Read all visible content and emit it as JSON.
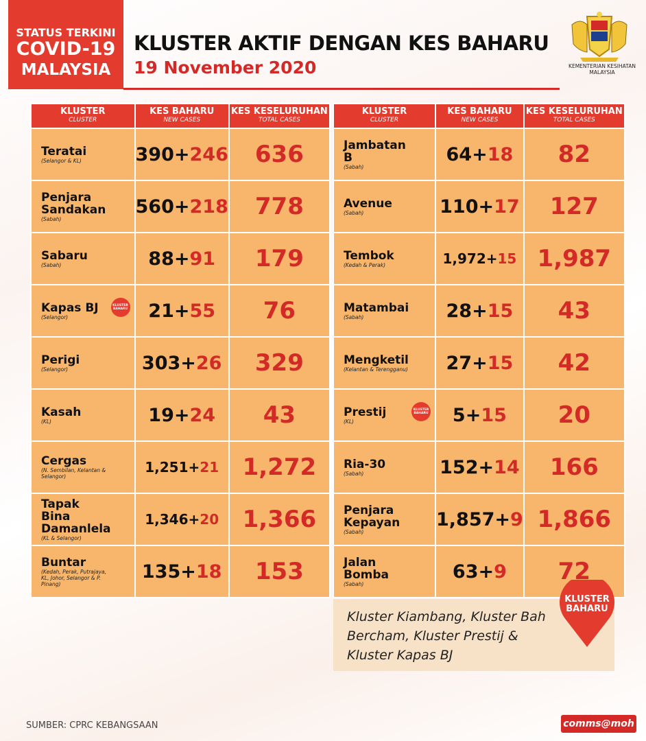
{
  "header": {
    "badge": [
      "STATUS TERKINI",
      "COVID-19",
      "MALAYSIA"
    ],
    "title": "KLUSTER AKTIF DENGAN KES BAHARU",
    "date": "19 November 2020",
    "ministry": [
      "KEMENTERIAN KESIHATAN",
      "MALAYSIA"
    ]
  },
  "tables": [
    {
      "columns": [
        {
          "label": "KLUSTER",
          "sublabel": "CLUSTER"
        },
        {
          "label": "KES BAHARU",
          "sublabel": "NEW CASES"
        },
        {
          "label": "KES KESELURUHAN",
          "sublabel": "TOTAL CASES"
        }
      ],
      "rows": [
        {
          "cluster": "Teratai",
          "location": "(Selangor & KL)",
          "new_cases": {
            "base": "390+",
            "added": "246"
          },
          "total": "636"
        },
        {
          "cluster": "Penjara Sandakan",
          "location": "(Sabah)",
          "new_cases": {
            "base": "560+",
            "added": "218"
          },
          "total": "778"
        },
        {
          "cluster": "Sabaru",
          "location": "(Sabah)",
          "new_cases": {
            "base": "88+",
            "added": "91"
          },
          "total": "179"
        },
        {
          "cluster": "Kapas BJ",
          "location": "(Selangor)",
          "new_cases": {
            "base": "21+",
            "added": "55"
          },
          "total": "76",
          "new_cluster": true
        },
        {
          "cluster": "Perigi",
          "location": "(Selangor)",
          "new_cases": {
            "base": "303+",
            "added": "26"
          },
          "total": "329"
        },
        {
          "cluster": "Kasah",
          "location": "(KL)",
          "new_cases": {
            "base": "19+",
            "added": "24"
          },
          "total": "43"
        },
        {
          "cluster": "Cergas",
          "location": "(N. Sembilan, Kelantan & Selangor)",
          "new_cases": {
            "base": "1,251+",
            "added": "21"
          },
          "total": "1,272"
        },
        {
          "cluster": "Tapak Bina Damanlela",
          "location": "(KL & Selangor)",
          "new_cases": {
            "base": "1,346+",
            "added": "20"
          },
          "total": "1,366"
        },
        {
          "cluster": "Buntar",
          "location": "(Kedah, Perak, Putrajaya, KL, Johor, Selangor & P. Pinang)",
          "new_cases": {
            "base": "135+",
            "added": "18"
          },
          "total": "153"
        }
      ]
    },
    {
      "columns": [
        {
          "label": "KLUSTER",
          "sublabel": "CLUSTER"
        },
        {
          "label": "KES BAHARU",
          "sublabel": "NEW CASES"
        },
        {
          "label": "KES KESELURUHAN",
          "sublabel": "TOTAL CASES"
        }
      ],
      "rows": [
        {
          "cluster": "Jambatan B",
          "location": "(Sabah)",
          "new_cases": {
            "base": "64+",
            "added": "18"
          },
          "total": "82"
        },
        {
          "cluster": "Avenue",
          "location": "(Sabah)",
          "new_cases": {
            "base": "110+",
            "added": "17"
          },
          "total": "127"
        },
        {
          "cluster": "Tembok",
          "location": "(Kedah & Perak)",
          "new_cases": {
            "base": "1,972+",
            "added": "15"
          },
          "total": "1,987"
        },
        {
          "cluster": "Matambai",
          "location": "(Sabah)",
          "new_cases": {
            "base": "28+",
            "added": "15"
          },
          "total": "43"
        },
        {
          "cluster": "Mengketil",
          "location": "(Kelantan & Terengganu)",
          "new_cases": {
            "base": "27+",
            "added": "15"
          },
          "total": "42"
        },
        {
          "cluster": "Prestij",
          "location": "(KL)",
          "new_cases": {
            "base": "5+",
            "added": "15"
          },
          "total": "20",
          "new_cluster": true
        },
        {
          "cluster": "Ria-30",
          "location": "(Sabah)",
          "new_cases": {
            "base": "152+",
            "added": "14"
          },
          "total": "166"
        },
        {
          "cluster": "Penjara Kepayan",
          "location": "(Sabah)",
          "new_cases": {
            "base": "1,857+",
            "added": "9"
          },
          "total": "1,866"
        },
        {
          "cluster": "Jalan Bomba",
          "location": "(Sabah)",
          "new_cases": {
            "base": "63+",
            "added": "9"
          },
          "total": "72"
        }
      ]
    }
  ],
  "note": {
    "badge": [
      "KLUSTER",
      "BAHARU"
    ],
    "text": "Kluster Kiambang, Kluster Bah Bercham, Kluster Prestij & Kluster Kapas BJ"
  },
  "footer": {
    "source": "SUMBER: CPRC KEBANGSAAN",
    "brand": "comms@moh"
  }
}
